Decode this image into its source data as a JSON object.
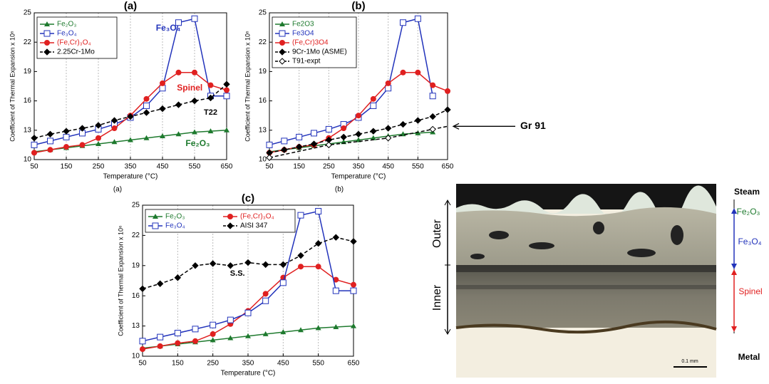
{
  "chart_data": [
    {
      "type": "line",
      "title": "(a)",
      "caption": "(a)",
      "xlabel": "Temperature (°C)",
      "ylabel": "Coefficient of Thermal Expansion x 10⁶",
      "xlim": [
        50,
        650
      ],
      "xticks": [
        50,
        150,
        250,
        350,
        450,
        550,
        650
      ],
      "ylim": [
        10,
        25
      ],
      "yticks": [
        10,
        13,
        16,
        19,
        22,
        25
      ],
      "grid": true,
      "series": [
        {
          "name": "Fe₂O₃",
          "color": "#1e7a2e",
          "marker": "triangle",
          "dash": false,
          "x": [
            50,
            100,
            150,
            200,
            250,
            300,
            350,
            400,
            450,
            500,
            550,
            600,
            650
          ],
          "values": [
            10.8,
            11.0,
            11.2,
            11.4,
            11.6,
            11.8,
            12.0,
            12.2,
            12.4,
            12.6,
            12.8,
            12.9,
            13.0
          ]
        },
        {
          "name": "Fe₃O₄",
          "color": "#2233bb",
          "marker": "square",
          "dash": false,
          "x": [
            50,
            100,
            150,
            200,
            250,
            300,
            350,
            400,
            450,
            500,
            550,
            600,
            650
          ],
          "values": [
            11.5,
            11.9,
            12.3,
            12.7,
            13.1,
            13.6,
            14.3,
            15.5,
            17.3,
            24.0,
            24.4,
            16.5,
            16.5
          ]
        },
        {
          "name": "(Fe,Cr)₃O₄",
          "color": "#e02020",
          "marker": "circle",
          "dash": false,
          "x": [
            50,
            100,
            150,
            200,
            250,
            300,
            350,
            400,
            450,
            500,
            550,
            600,
            650
          ],
          "values": [
            10.7,
            11.0,
            11.3,
            11.5,
            12.2,
            13.2,
            14.5,
            16.2,
            17.8,
            18.9,
            18.9,
            17.6,
            17.1
          ]
        },
        {
          "name": "2.25Cr-1Mo",
          "color": "#000000",
          "marker": "diamond",
          "dash": true,
          "x": [
            50,
            100,
            150,
            200,
            250,
            300,
            350,
            400,
            450,
            500,
            550,
            600,
            650
          ],
          "values": [
            12.2,
            12.6,
            12.9,
            13.2,
            13.5,
            14.0,
            14.4,
            14.8,
            15.2,
            15.6,
            16.0,
            16.3,
            17.7
          ]
        }
      ],
      "annotations": [
        {
          "text": "Fe₃O₄",
          "color": "#2233bb"
        },
        {
          "text": "Spinel",
          "color": "#e02020"
        },
        {
          "text": "T22",
          "color": "#000000"
        },
        {
          "text": "Fe₂O₃",
          "color": "#1e7a2e"
        }
      ]
    },
    {
      "type": "line",
      "title": "(b)",
      "caption": "(b)",
      "xlabel": "Temperature (°C)",
      "ylabel": "Coefficient of Thermal Expansion x 10⁶",
      "xlim": [
        50,
        650
      ],
      "xticks": [
        50,
        150,
        250,
        350,
        450,
        550,
        650
      ],
      "ylim": [
        10,
        25
      ],
      "yticks": [
        10,
        13,
        16,
        19,
        22,
        25
      ],
      "grid": true,
      "series": [
        {
          "name": "Fe2O3",
          "color": "#1e7a2e",
          "marker": "triangle",
          "dash": false,
          "x": [
            50,
            100,
            150,
            200,
            250,
            300,
            350,
            400,
            450,
            500,
            550,
            600
          ],
          "values": [
            10.8,
            11.0,
            11.2,
            11.4,
            11.6,
            11.8,
            12.0,
            12.2,
            12.4,
            12.6,
            12.7,
            12.8
          ]
        },
        {
          "name": "Fe3O4",
          "color": "#2233bb",
          "marker": "square",
          "dash": false,
          "x": [
            50,
            100,
            150,
            200,
            250,
            300,
            350,
            400,
            450,
            500,
            550,
            600
          ],
          "values": [
            11.5,
            11.9,
            12.3,
            12.7,
            13.1,
            13.6,
            14.3,
            15.5,
            17.3,
            24.0,
            24.4,
            16.5
          ]
        },
        {
          "name": "(Fe,Cr)3O4",
          "color": "#e02020",
          "marker": "circle",
          "dash": false,
          "x": [
            50,
            100,
            150,
            200,
            250,
            300,
            350,
            400,
            450,
            500,
            550,
            600,
            650
          ],
          "values": [
            10.7,
            11.0,
            11.3,
            11.5,
            12.2,
            13.2,
            14.5,
            16.2,
            17.8,
            18.9,
            18.9,
            17.6,
            17.0
          ]
        },
        {
          "name": "9Cr-1Mo (ASME)",
          "color": "#000000",
          "marker": "diamond",
          "dash": true,
          "x": [
            50,
            100,
            150,
            200,
            250,
            300,
            350,
            400,
            450,
            500,
            550,
            600,
            650
          ],
          "values": [
            10.7,
            11.0,
            11.3,
            11.6,
            12.0,
            12.3,
            12.6,
            12.9,
            13.2,
            13.6,
            14.0,
            14.4,
            15.1
          ]
        },
        {
          "name": "T91-expt",
          "color": "#000000",
          "marker": "open-diamond",
          "dash": true,
          "x": [
            50,
            250,
            450,
            600,
            650
          ],
          "values": [
            10.2,
            11.5,
            12.2,
            13.1,
            13.4
          ]
        }
      ],
      "annotations": [
        {
          "text": "Gr 91",
          "color": "#000000"
        }
      ]
    },
    {
      "type": "line",
      "title": "(c)",
      "xlabel": "Temperature (°C)",
      "ylabel": "Coefficient of Thermal Expansion x 10⁶",
      "xlim": [
        50,
        650
      ],
      "xticks": [
        50,
        150,
        250,
        350,
        450,
        550,
        650
      ],
      "ylim": [
        10,
        25
      ],
      "yticks": [
        10,
        13,
        16,
        19,
        22,
        25
      ],
      "grid": true,
      "series": [
        {
          "name": "Fe₂O₃",
          "color": "#1e7a2e",
          "marker": "triangle",
          "dash": false,
          "x": [
            50,
            100,
            150,
            200,
            250,
            300,
            350,
            400,
            450,
            500,
            550,
            600,
            650
          ],
          "values": [
            10.8,
            11.0,
            11.2,
            11.4,
            11.6,
            11.8,
            12.0,
            12.2,
            12.4,
            12.6,
            12.8,
            12.9,
            13.0
          ]
        },
        {
          "name": "(Fe,Cr)₃O₄",
          "color": "#e02020",
          "marker": "circle",
          "dash": false,
          "x": [
            50,
            100,
            150,
            200,
            250,
            300,
            350,
            400,
            450,
            500,
            550,
            600,
            650
          ],
          "values": [
            10.7,
            11.0,
            11.3,
            11.5,
            12.2,
            13.2,
            14.5,
            16.2,
            17.8,
            18.9,
            18.9,
            17.6,
            17.1
          ]
        },
        {
          "name": "Fe₃O₄",
          "color": "#2233bb",
          "marker": "square",
          "dash": false,
          "x": [
            50,
            100,
            150,
            200,
            250,
            300,
            350,
            400,
            450,
            500,
            550,
            600,
            650
          ],
          "values": [
            11.5,
            11.9,
            12.3,
            12.7,
            13.1,
            13.6,
            14.3,
            15.5,
            17.3,
            24.0,
            24.4,
            16.5,
            16.5
          ]
        },
        {
          "name": "AISI 347",
          "color": "#000000",
          "marker": "diamond",
          "dash": true,
          "x": [
            50,
            100,
            150,
            200,
            250,
            300,
            350,
            400,
            450,
            500,
            550,
            600,
            650
          ],
          "values": [
            16.7,
            17.2,
            17.8,
            19.0,
            19.2,
            19.0,
            19.3,
            19.1,
            19.1,
            20.0,
            21.2,
            21.8,
            21.4
          ]
        }
      ],
      "annotations": [
        {
          "text": "S.S.",
          "color": "#000000"
        }
      ]
    }
  ],
  "micrograph": {
    "labels": {
      "steam": "Steam",
      "fe2o3": "Fe₂O₃",
      "fe3o4": "Fe₃O₄",
      "outer": "Outer",
      "inner": "Inner",
      "spinel": "Spinel",
      "metal": "Metal",
      "scale": "0.1 mm"
    }
  }
}
